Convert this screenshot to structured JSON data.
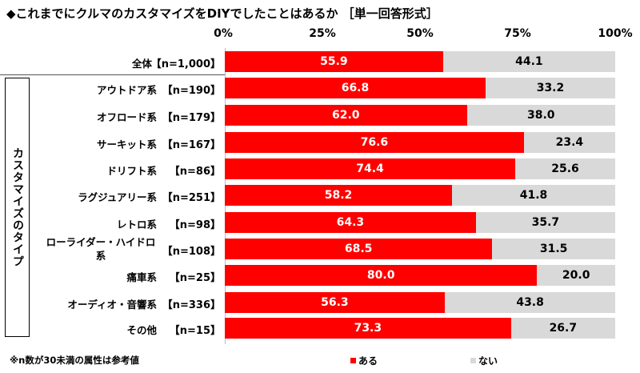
{
  "chart_data": {
    "type": "bar",
    "stacked": true,
    "orientation": "horizontal",
    "title": "◆これまでにクルマのカスタマイズをDIYでしたことはあるか ［単一回答形式］",
    "xlim": [
      0,
      100
    ],
    "ticks": [
      "0%",
      "25%",
      "50%",
      "75%",
      "100%"
    ],
    "group_label": "カスタマイズのタイプ",
    "categories": [
      "全体",
      "アウトドア系",
      "オフロード系",
      "サーキット系",
      "ドリフト系",
      "ラグジュアリー系",
      "レトロ系",
      "ローライダー・ハイドロ系",
      "痛車系",
      "オーディオ・音響系",
      "その他"
    ],
    "n_labels": [
      "【n=1,000】",
      "【n=190】",
      "【n=179】",
      "【n=167】",
      "【n=86】",
      "【n=251】",
      "【n=98】",
      "【n=108】",
      "【n=25】",
      "【n=336】",
      "【n=15】"
    ],
    "series": [
      {
        "name": "ある",
        "color": "#ff0000",
        "values": [
          55.9,
          66.8,
          62.0,
          76.6,
          74.4,
          58.2,
          64.3,
          68.5,
          80.0,
          56.3,
          73.3
        ]
      },
      {
        "name": "ない",
        "color": "#d9d9d9",
        "values": [
          44.1,
          33.2,
          38.0,
          23.4,
          25.6,
          41.8,
          35.7,
          31.5,
          20.0,
          43.8,
          26.7
        ]
      }
    ],
    "legend_position": "bottom",
    "note": "※n数が30未満の属性は参考値"
  }
}
